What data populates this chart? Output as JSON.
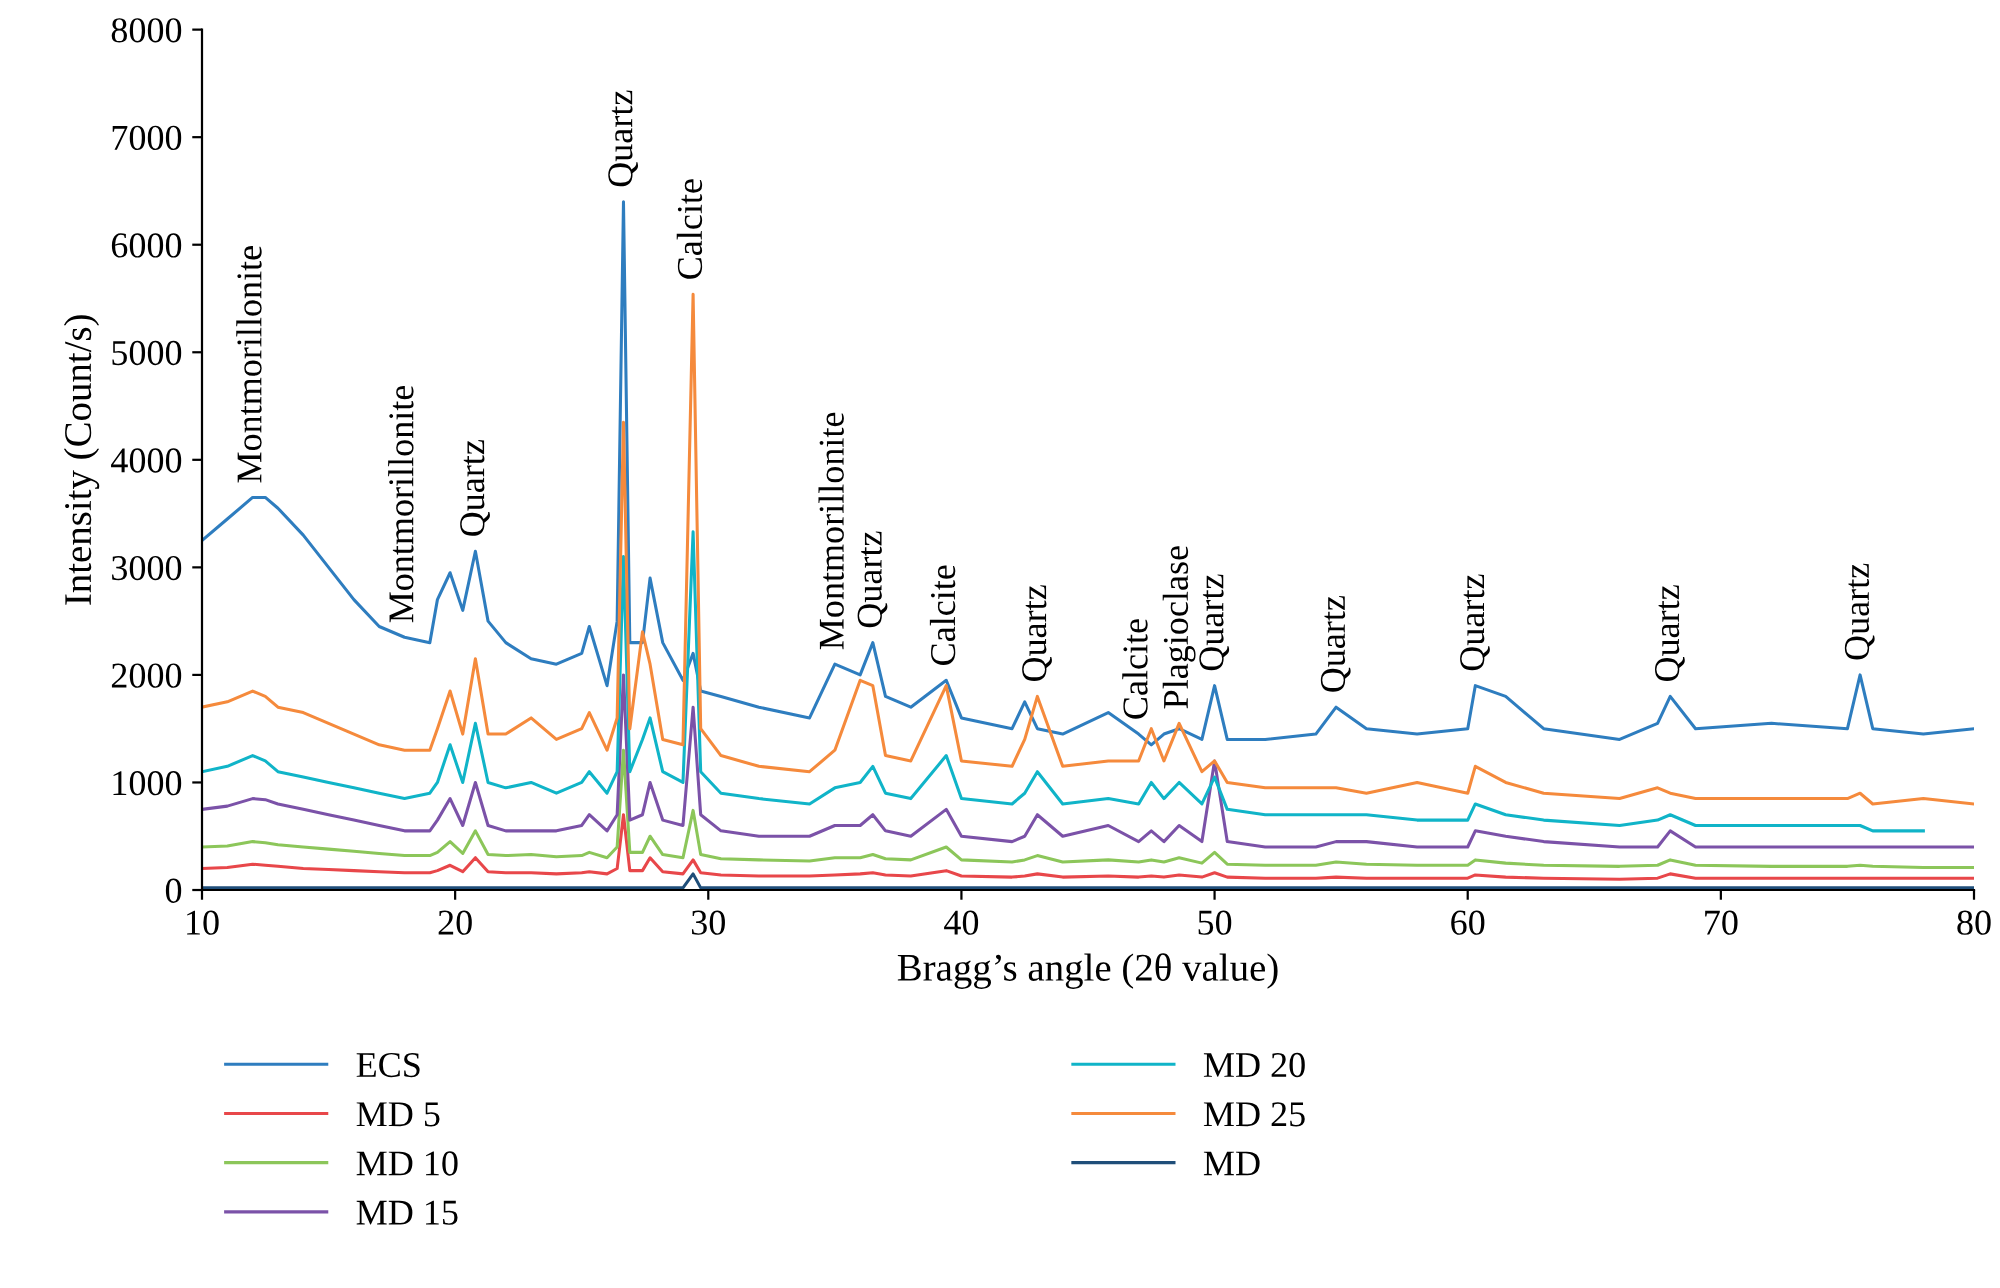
{
  "chart_data": {
    "type": "line",
    "xlabel": "Bragg’s angle (2θ value)",
    "ylabel": "Intensity (Count/s)",
    "x": [
      10,
      11,
      12,
      12.5,
      13,
      14,
      15,
      16,
      17,
      18,
      19,
      19.3,
      19.8,
      20.3,
      20.8,
      21.3,
      22,
      23,
      24,
      25,
      25.3,
      26,
      26.4,
      26.65,
      26.9,
      27.4,
      27.7,
      28.2,
      29,
      29.4,
      29.7,
      30.5,
      32,
      34,
      35,
      36,
      36.5,
      37,
      38,
      39.4,
      40,
      42,
      42.5,
      43,
      44,
      45.8,
      47,
      47.5,
      48,
      48.6,
      49.5,
      50,
      50.5,
      52,
      54,
      54.8,
      56,
      58,
      60,
      60.3,
      61.5,
      63,
      66,
      67.5,
      68,
      69,
      72,
      75,
      75.5,
      76,
      78,
      80
    ],
    "series": [
      {
        "name": "ECS",
        "color": "#2e7dbf",
        "values": [
          3250,
          3450,
          3650,
          3650,
          3550,
          3300,
          3000,
          2700,
          2450,
          2350,
          2300,
          2700,
          2950,
          2600,
          3150,
          2500,
          2300,
          2150,
          2100,
          2200,
          2450,
          1900,
          2500,
          6400,
          2300,
          2300,
          2900,
          2300,
          1950,
          2200,
          1850,
          1800,
          1700,
          1600,
          2100,
          2000,
          2300,
          1800,
          1700,
          1950,
          1600,
          1500,
          1750,
          1500,
          1450,
          1650,
          1450,
          1350,
          1450,
          1500,
          1400,
          1900,
          1400,
          1400,
          1450,
          1700,
          1500,
          1450,
          1500,
          1900,
          1800,
          1500,
          1400,
          1550,
          1800,
          1500,
          1550,
          1500,
          2000,
          1500,
          1450,
          1500
        ]
      },
      {
        "name": "MD 5",
        "color": "#e8474a",
        "values": [
          200,
          210,
          240,
          230,
          220,
          200,
          190,
          180,
          170,
          160,
          160,
          180,
          230,
          170,
          300,
          170,
          160,
          160,
          150,
          160,
          170,
          150,
          200,
          700,
          180,
          180,
          300,
          170,
          150,
          280,
          160,
          140,
          130,
          130,
          140,
          150,
          160,
          140,
          130,
          180,
          130,
          120,
          130,
          150,
          120,
          130,
          120,
          130,
          120,
          140,
          120,
          160,
          120,
          110,
          110,
          120,
          110,
          110,
          110,
          140,
          120,
          110,
          100,
          110,
          150,
          110,
          110,
          110,
          110,
          110,
          110,
          110
        ]
      },
      {
        "name": "MD 10",
        "color": "#8cc65a",
        "values": [
          400,
          410,
          450,
          440,
          420,
          400,
          380,
          360,
          340,
          320,
          320,
          350,
          450,
          340,
          550,
          330,
          320,
          330,
          310,
          320,
          350,
          300,
          400,
          1300,
          350,
          350,
          500,
          330,
          300,
          740,
          330,
          290,
          280,
          270,
          300,
          300,
          330,
          290,
          280,
          400,
          280,
          260,
          280,
          320,
          260,
          280,
          260,
          280,
          260,
          300,
          250,
          350,
          240,
          230,
          230,
          260,
          240,
          230,
          230,
          280,
          250,
          230,
          220,
          230,
          280,
          230,
          220,
          220,
          230,
          220,
          210,
          210
        ]
      },
      {
        "name": "MD 15",
        "color": "#7b52a8",
        "values": [
          750,
          780,
          850,
          840,
          800,
          750,
          700,
          650,
          600,
          550,
          550,
          650,
          850,
          600,
          1000,
          600,
          550,
          550,
          550,
          600,
          700,
          550,
          700,
          2000,
          650,
          700,
          1000,
          650,
          600,
          1700,
          700,
          550,
          500,
          500,
          600,
          600,
          700,
          550,
          500,
          750,
          500,
          450,
          500,
          700,
          500,
          600,
          450,
          550,
          450,
          600,
          450,
          1200,
          450,
          400,
          400,
          450,
          450,
          400,
          400,
          550,
          500,
          450,
          400,
          400,
          550,
          400,
          400,
          400,
          400,
          400,
          400,
          400
        ]
      },
      {
        "name": "MD 20",
        "color": "#10b4c8",
        "values": [
          1100,
          1150,
          1250,
          1200,
          1100,
          1050,
          1000,
          950,
          900,
          850,
          900,
          1000,
          1350,
          1000,
          1550,
          1000,
          950,
          1000,
          900,
          1000,
          1100,
          900,
          1100,
          3100,
          1100,
          1400,
          1600,
          1100,
          1000,
          3330,
          1100,
          900,
          850,
          800,
          950,
          1000,
          1150,
          900,
          850,
          1250,
          850,
          800,
          900,
          1100,
          800,
          850,
          800,
          1000,
          850,
          1000,
          800,
          1050,
          750,
          700,
          700,
          700,
          700,
          650,
          650,
          800,
          700,
          650,
          600,
          650,
          700,
          600,
          600,
          600,
          600,
          550,
          550,
          null
        ]
      },
      {
        "name": "MD 25",
        "color": "#f58a3c",
        "values": [
          1700,
          1750,
          1850,
          1800,
          1700,
          1650,
          1550,
          1450,
          1350,
          1300,
          1300,
          1500,
          1850,
          1450,
          2150,
          1450,
          1450,
          1600,
          1400,
          1500,
          1650,
          1300,
          1600,
          4350,
          1500,
          2400,
          2100,
          1400,
          1350,
          5540,
          1500,
          1250,
          1150,
          1100,
          1300,
          1950,
          1900,
          1250,
          1200,
          1900,
          1200,
          1150,
          1400,
          1800,
          1150,
          1200,
          1200,
          1500,
          1200,
          1550,
          1100,
          1200,
          1000,
          950,
          950,
          950,
          900,
          1000,
          900,
          1150,
          1000,
          900,
          850,
          950,
          900,
          850,
          850,
          850,
          900,
          800,
          850,
          800
        ]
      },
      {
        "name": "MD",
        "color": "#1f4e79",
        "values": [
          20,
          20,
          20,
          20,
          20,
          20,
          20,
          20,
          20,
          20,
          20,
          20,
          20,
          20,
          20,
          20,
          20,
          20,
          20,
          20,
          20,
          20,
          20,
          20,
          20,
          20,
          20,
          20,
          20,
          150,
          20,
          20,
          20,
          20,
          20,
          20,
          20,
          20,
          20,
          20,
          20,
          20,
          20,
          20,
          20,
          20,
          20,
          20,
          20,
          20,
          20,
          20,
          20,
          20,
          20,
          20,
          20,
          20,
          20,
          20,
          20,
          20,
          20,
          20,
          20,
          20,
          20,
          20,
          20,
          20,
          20,
          20
        ]
      }
    ],
    "xlim": [
      10,
      80
    ],
    "ylim": [
      0,
      8000
    ],
    "xticks": [
      10,
      20,
      30,
      40,
      50,
      60,
      70,
      80
    ],
    "yticks": [
      0,
      1000,
      2000,
      3000,
      4000,
      5000,
      6000,
      7000,
      8000
    ],
    "annotations": [
      {
        "text": "Montmorillonite",
        "x": 12,
        "y": 3650
      },
      {
        "text": "Montmorillonite",
        "x": 18,
        "y": 2350
      },
      {
        "text": "Quartz",
        "x": 20.8,
        "y": 3150
      },
      {
        "text": "Quartz",
        "x": 26.65,
        "y": 6400
      },
      {
        "text": "Calcite",
        "x": 29.4,
        "y": 5540
      },
      {
        "text": "Montmorillonite",
        "x": 35,
        "y": 2100
      },
      {
        "text": "Quartz",
        "x": 36.5,
        "y": 2300
      },
      {
        "text": "Calcite",
        "x": 39.4,
        "y": 1950
      },
      {
        "text": "Quartz",
        "x": 43,
        "y": 1800
      },
      {
        "text": "Calcite",
        "x": 47,
        "y": 1450
      },
      {
        "text": "Plagioclase",
        "x": 48.6,
        "y": 1550
      },
      {
        "text": "Quartz",
        "x": 50,
        "y": 1900
      },
      {
        "text": "Quartz",
        "x": 54.8,
        "y": 1700
      },
      {
        "text": "Quartz",
        "x": 60.3,
        "y": 1900
      },
      {
        "text": "Quartz",
        "x": 68,
        "y": 1800
      },
      {
        "text": "Quartz",
        "x": 75.5,
        "y": 2000
      }
    ],
    "legend": "bottom"
  }
}
